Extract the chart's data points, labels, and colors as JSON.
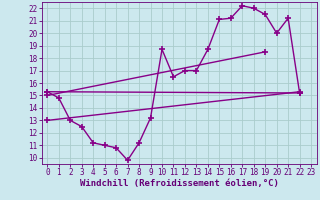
{
  "bg_color": "#cce8ee",
  "grid_color": "#aacccc",
  "line_color": "#880088",
  "marker": "+",
  "markersize": 4,
  "markeredgewidth": 1.2,
  "linewidth": 1.0,
  "xlabel": "Windchill (Refroidissement éolien,°C)",
  "xlabel_color": "#660077",
  "xlabel_fontsize": 6.5,
  "tick_color": "#660077",
  "tick_fontsize": 5.5,
  "xlim": [
    -0.5,
    23.5
  ],
  "ylim": [
    9.5,
    22.5
  ],
  "xticks": [
    0,
    1,
    2,
    3,
    4,
    5,
    6,
    7,
    8,
    9,
    10,
    11,
    12,
    13,
    14,
    15,
    16,
    17,
    18,
    19,
    20,
    21,
    22,
    23
  ],
  "yticks": [
    10,
    11,
    12,
    13,
    14,
    15,
    16,
    17,
    18,
    19,
    20,
    21,
    22
  ],
  "series": [
    {
      "x": [
        0,
        1,
        2,
        3,
        4,
        5,
        6,
        7,
        8,
        9,
        10,
        11,
        12,
        13,
        14,
        15,
        16,
        17,
        18,
        19,
        20,
        21,
        22
      ],
      "y": [
        15.3,
        14.8,
        13.0,
        12.5,
        11.2,
        11.0,
        10.8,
        9.8,
        11.2,
        13.2,
        18.7,
        16.5,
        17.0,
        17.0,
        18.7,
        21.1,
        21.2,
        22.2,
        22.0,
        21.5,
        20.0,
        21.2,
        15.2
      ]
    },
    {
      "x": [
        0,
        22
      ],
      "y": [
        15.3,
        15.2
      ]
    },
    {
      "x": [
        0,
        19
      ],
      "y": [
        15.0,
        18.5
      ]
    },
    {
      "x": [
        0,
        22
      ],
      "y": [
        13.0,
        15.3
      ]
    }
  ]
}
